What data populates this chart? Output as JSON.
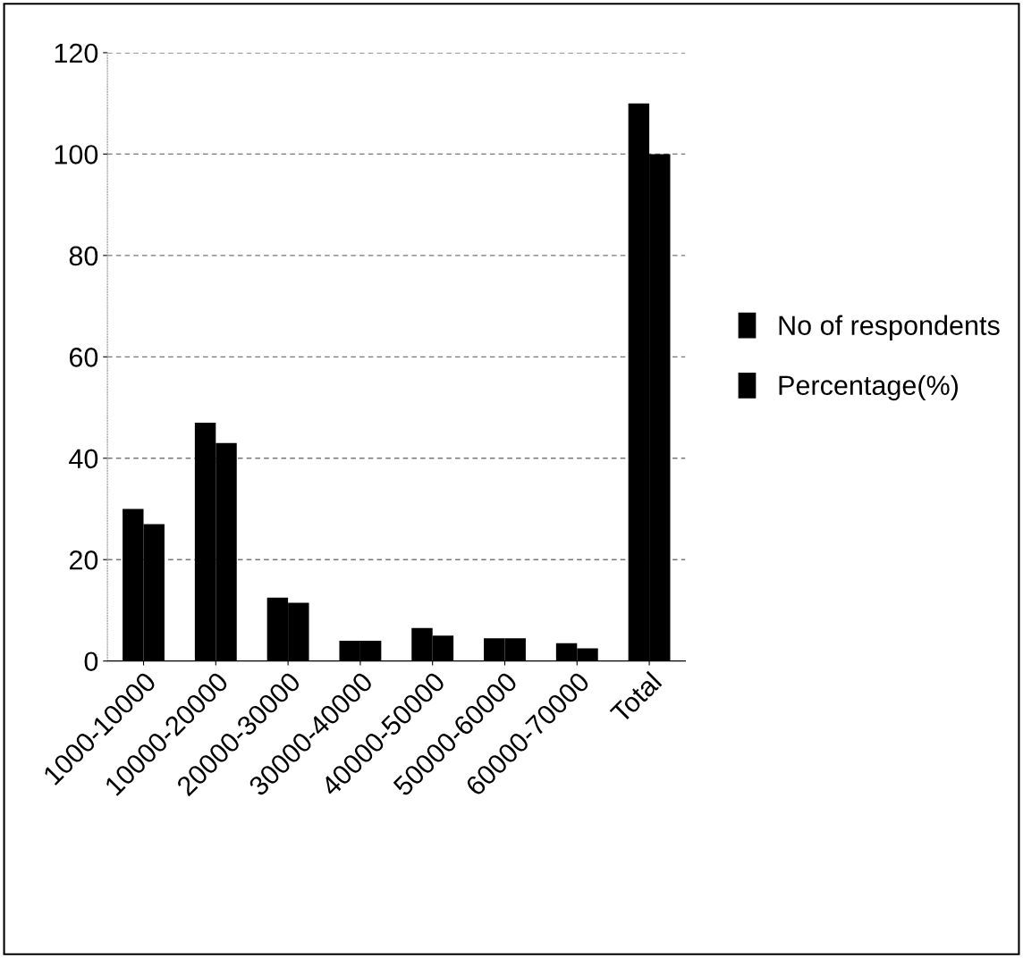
{
  "chart_data": {
    "type": "bar",
    "categories": [
      "1000-10000",
      "10000-20000",
      "20000-30000",
      "30000-40000",
      "40000-50000",
      "50000-60000",
      "60000-70000",
      "Total"
    ],
    "series": [
      {
        "name": "No of respondents",
        "color": "#000000",
        "values": [
          30,
          47,
          12.5,
          4,
          6.5,
          4.5,
          3.5,
          110
        ]
      },
      {
        "name": "Percentage(%)",
        "color": "#000000",
        "values": [
          27,
          43,
          11.5,
          4,
          5,
          4.5,
          2.5,
          100
        ]
      }
    ],
    "ylim": [
      0,
      120
    ],
    "yticks": [
      0,
      20,
      40,
      60,
      80,
      100,
      120
    ],
    "grid": "y",
    "legend": "right"
  }
}
